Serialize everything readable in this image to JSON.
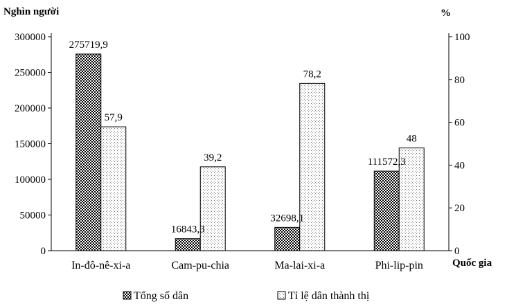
{
  "chart_data": {
    "type": "bar",
    "categories": [
      "In-đô-nê-xi-a",
      "Cam-pu-chia",
      "Ma-lai-xi-a",
      "Phi-lip-pin"
    ],
    "series": [
      {
        "name": "Tổng số dân",
        "axis": "left",
        "pattern": "checker",
        "values": [
          275719.9,
          16843.3,
          32698.1,
          111572.3
        ],
        "labels": [
          "275719,9",
          "16843,3",
          "32698,1",
          "111572,3"
        ]
      },
      {
        "name": "Tỉ lệ dân thành thị",
        "axis": "right",
        "pattern": "dotted",
        "values": [
          57.9,
          39.2,
          78.2,
          48
        ],
        "labels": [
          "57,9",
          "39,2",
          "78,2",
          "48"
        ]
      }
    ],
    "ylabel_left": "Nghìn người",
    "ylabel_right": "%",
    "xlabel": "Quốc gia",
    "ylim_left": [
      0,
      300000
    ],
    "ylim_right": [
      0,
      100
    ],
    "yticks_left": [
      "0",
      "50000",
      "100000",
      "150000",
      "200000",
      "250000",
      "300000"
    ],
    "yticks_right": [
      "0",
      "20",
      "40",
      "60",
      "80",
      "100"
    ],
    "legend_position": "bottom"
  }
}
